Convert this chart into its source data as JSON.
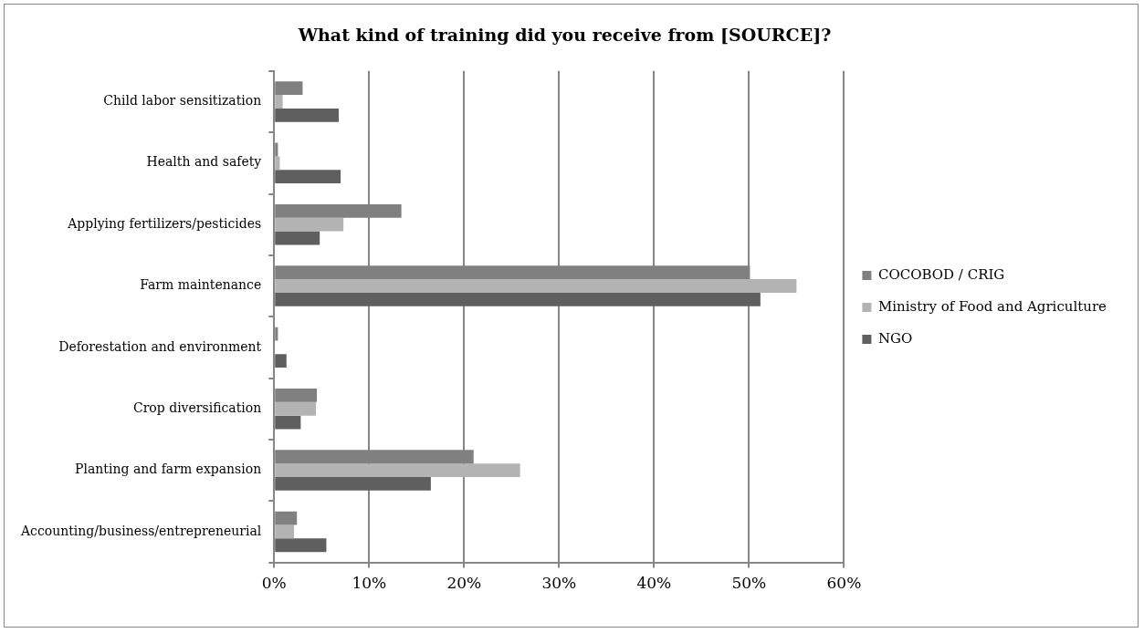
{
  "chart_data": {
    "type": "bar",
    "orientation": "horizontal",
    "title": "What kind of training did you receive from [SOURCE]?",
    "categories": [
      "Child labor sensitization",
      "Health and safety",
      "Applying fertilizers/pesticides",
      "Farm maintenance",
      "Deforestation and environment",
      "Crop diversification",
      "Planting and farm expansion",
      "Accounting/business/entrepreneurial"
    ],
    "series": [
      {
        "name": "COCOBOD / CRIG",
        "color": "#808080",
        "values": [
          3.0,
          0.4,
          13.4,
          50.1,
          0.4,
          4.5,
          21.0,
          2.4
        ]
      },
      {
        "name": "Ministry of Food and Agriculture",
        "color": "#b3b3b3",
        "values": [
          0.9,
          0.6,
          7.3,
          55.0,
          0,
          4.4,
          25.9,
          2.1
        ]
      },
      {
        "name": "NGO",
        "color": "#5f5f5f",
        "values": [
          6.8,
          7.0,
          4.8,
          51.2,
          1.3,
          2.8,
          16.5,
          5.5
        ]
      }
    ],
    "xlim": [
      0,
      60
    ],
    "xticks": [
      {
        "value": 0,
        "label": "0%"
      },
      {
        "value": 10,
        "label": "10%"
      },
      {
        "value": 20,
        "label": "20%"
      },
      {
        "value": 30,
        "label": "30%"
      },
      {
        "value": 40,
        "label": "40%"
      },
      {
        "value": 50,
        "label": "50%"
      },
      {
        "value": 60,
        "label": "60%"
      }
    ],
    "grid": "x",
    "legend": "right"
  }
}
